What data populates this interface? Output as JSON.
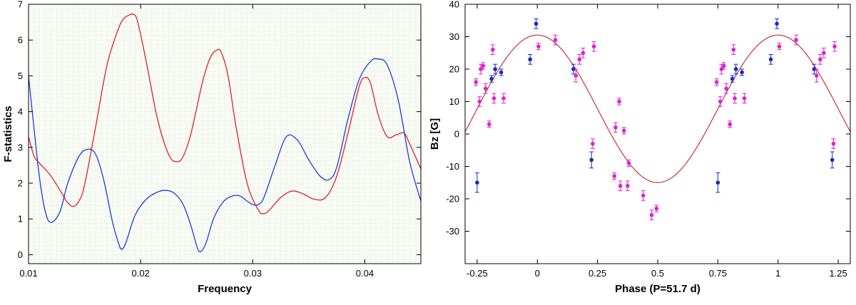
{
  "chart_data": [
    {
      "type": "line",
      "xlabel": "Frequency",
      "ylabel": "F-statistics",
      "xlim": [
        0.01,
        0.045
      ],
      "ylim": [
        -0.25,
        7
      ],
      "xticks": [
        0.01,
        0.02,
        0.03,
        0.04
      ],
      "xtick_labels": [
        "0.01",
        "0.02",
        "0.03",
        "0.04"
      ],
      "yticks": [
        0,
        1,
        2,
        3,
        4,
        5,
        6,
        7
      ],
      "ytick_labels": [
        "0",
        "1",
        "2",
        "3",
        "4",
        "5",
        "6",
        "7"
      ],
      "grid": true,
      "background": "#f7fbf4",
      "series": [
        {
          "color": "#e0202a",
          "x": [
            0.01,
            0.0105,
            0.011,
            0.012,
            0.013,
            0.0135,
            0.014,
            0.0145,
            0.015,
            0.016,
            0.017,
            0.018,
            0.0185,
            0.019,
            0.0193,
            0.0197,
            0.0205,
            0.0215,
            0.0225,
            0.0232,
            0.0238,
            0.0245,
            0.0255,
            0.0262,
            0.0268,
            0.0272,
            0.0278,
            0.0285,
            0.0295,
            0.0305,
            0.031,
            0.0315,
            0.0325,
            0.0335,
            0.0345,
            0.0355,
            0.0365,
            0.0375,
            0.0385,
            0.0395,
            0.04,
            0.0405,
            0.0412,
            0.042,
            0.0428,
            0.0435,
            0.044,
            0.045
          ],
          "y": [
            3.3,
            2.75,
            2.55,
            2.2,
            1.7,
            1.45,
            1.35,
            1.5,
            1.95,
            3.6,
            5.3,
            6.3,
            6.6,
            6.7,
            6.72,
            6.55,
            5.4,
            3.8,
            2.8,
            2.6,
            2.75,
            3.4,
            4.8,
            5.5,
            5.72,
            5.65,
            5.0,
            3.6,
            2.0,
            1.25,
            1.15,
            1.25,
            1.6,
            1.78,
            1.7,
            1.55,
            1.6,
            2.2,
            3.4,
            4.7,
            4.95,
            4.8,
            3.9,
            3.3,
            3.35,
            3.4,
            3.1,
            2.4
          ]
        },
        {
          "color": "#1e3cd8",
          "x": [
            0.01,
            0.0105,
            0.011,
            0.0115,
            0.012,
            0.0128,
            0.0135,
            0.0145,
            0.0153,
            0.016,
            0.0167,
            0.0175,
            0.018,
            0.0183,
            0.0187,
            0.0195,
            0.0205,
            0.0215,
            0.0222,
            0.023,
            0.0238,
            0.0245,
            0.025,
            0.0253,
            0.0258,
            0.0265,
            0.0273,
            0.028,
            0.0288,
            0.0295,
            0.03,
            0.0305,
            0.031,
            0.032,
            0.033,
            0.034,
            0.035,
            0.036,
            0.0368,
            0.0375,
            0.0385,
            0.0395,
            0.0405,
            0.0412,
            0.042,
            0.043,
            0.044,
            0.045
          ],
          "y": [
            5.0,
            3.5,
            2.1,
            1.2,
            0.9,
            1.2,
            2.0,
            2.75,
            2.95,
            2.8,
            2.1,
            0.9,
            0.35,
            0.15,
            0.35,
            1.1,
            1.55,
            1.75,
            1.8,
            1.72,
            1.4,
            0.8,
            0.25,
            0.08,
            0.3,
            1.0,
            1.45,
            1.62,
            1.65,
            1.5,
            1.4,
            1.4,
            1.6,
            2.5,
            3.3,
            3.2,
            2.65,
            2.2,
            2.1,
            2.45,
            3.8,
            4.9,
            5.4,
            5.47,
            5.3,
            4.3,
            2.6,
            1.5
          ]
        }
      ]
    },
    {
      "type": "scatter",
      "xlabel": "Phase (P=51.7 d)",
      "ylabel": "Bz [G]",
      "xlim": [
        -0.3,
        1.3
      ],
      "ylim": [
        -40,
        40
      ],
      "xticks": [
        -0.25,
        0,
        0.25,
        0.5,
        0.75,
        1,
        1.25
      ],
      "xtick_labels": [
        "-0.25",
        "0",
        "0.25",
        "0.5",
        "0.75",
        "1",
        "1.25"
      ],
      "yticks": [
        -30,
        -20,
        -10,
        0,
        10,
        20,
        30,
        40
      ],
      "ytick_labels": [
        "-30",
        "-20",
        "-10",
        "0",
        "10",
        "20",
        "30",
        "40"
      ],
      "grid": false,
      "fit": {
        "type": "sinusoid",
        "mean": 7.75,
        "amplitude": 22.75,
        "phase_of_max": 0.0,
        "period": 1.0,
        "color": "#c8202a"
      },
      "series": [
        {
          "color": "#1428c8",
          "points": [
            {
              "x": -0.25,
              "y": -15,
              "err": 3
            },
            {
              "x": -0.19,
              "y": 17,
              "err": 1
            },
            {
              "x": -0.175,
              "y": 20,
              "err": 1.5
            },
            {
              "x": -0.15,
              "y": 19,
              "err": 1
            },
            {
              "x": -0.03,
              "y": 23,
              "err": 1.5
            },
            {
              "x": -0.005,
              "y": 34,
              "err": 1.5
            },
            {
              "x": 0.15,
              "y": 20,
              "err": 1.5
            },
            {
              "x": 0.225,
              "y": -8,
              "err": 2.5
            },
            {
              "x": 0.75,
              "y": -15,
              "err": 3
            },
            {
              "x": 0.81,
              "y": 17,
              "err": 1
            },
            {
              "x": 0.825,
              "y": 20,
              "err": 1.5
            },
            {
              "x": 0.85,
              "y": 19,
              "err": 1
            },
            {
              "x": 0.97,
              "y": 23,
              "err": 1.5
            },
            {
              "x": 0.995,
              "y": 34,
              "err": 1.5
            },
            {
              "x": 1.15,
              "y": 20,
              "err": 1.5
            },
            {
              "x": 1.225,
              "y": -8,
              "err": 2.5
            }
          ]
        },
        {
          "color": "#e020d0",
          "points": [
            {
              "x": -0.255,
              "y": 16,
              "err": 1
            },
            {
              "x": -0.24,
              "y": 10,
              "err": 1.5
            },
            {
              "x": -0.235,
              "y": 20,
              "err": 1.5
            },
            {
              "x": -0.225,
              "y": 21,
              "err": 1
            },
            {
              "x": -0.215,
              "y": 14,
              "err": 1.5
            },
            {
              "x": -0.2,
              "y": 3,
              "err": 1
            },
            {
              "x": -0.185,
              "y": 26,
              "err": 1.5
            },
            {
              "x": -0.18,
              "y": 11,
              "err": 1.5
            },
            {
              "x": -0.14,
              "y": 11,
              "err": 1.5
            },
            {
              "x": 0.005,
              "y": 27,
              "err": 1
            },
            {
              "x": 0.075,
              "y": 29,
              "err": 1.5
            },
            {
              "x": 0.16,
              "y": 18,
              "err": 2
            },
            {
              "x": 0.175,
              "y": 23,
              "err": 1.5
            },
            {
              "x": 0.19,
              "y": 25,
              "err": 1.5
            },
            {
              "x": 0.23,
              "y": -3,
              "err": 1.5
            },
            {
              "x": 0.235,
              "y": 27,
              "err": 1.5
            },
            {
              "x": 0.32,
              "y": -13,
              "err": 1
            },
            {
              "x": 0.325,
              "y": 2,
              "err": 1.5
            },
            {
              "x": 0.34,
              "y": 10,
              "err": 1
            },
            {
              "x": 0.345,
              "y": -16,
              "err": 1.5
            },
            {
              "x": 0.36,
              "y": 1,
              "err": 1
            },
            {
              "x": 0.375,
              "y": -16,
              "err": 1.5
            },
            {
              "x": 0.38,
              "y": -9,
              "err": 1
            },
            {
              "x": 0.44,
              "y": -19,
              "err": 1.5
            },
            {
              "x": 0.475,
              "y": -25,
              "err": 1.5
            },
            {
              "x": 0.495,
              "y": -23,
              "err": 1
            },
            {
              "x": 0.745,
              "y": 16,
              "err": 1
            },
            {
              "x": 0.76,
              "y": 10,
              "err": 1.5
            },
            {
              "x": 0.765,
              "y": 20,
              "err": 1.5
            },
            {
              "x": 0.775,
              "y": 21,
              "err": 1
            },
            {
              "x": 0.785,
              "y": 14,
              "err": 1.5
            },
            {
              "x": 0.8,
              "y": 3,
              "err": 1
            },
            {
              "x": 0.815,
              "y": 26,
              "err": 1.5
            },
            {
              "x": 0.82,
              "y": 11,
              "err": 1.5
            },
            {
              "x": 0.86,
              "y": 11,
              "err": 1.5
            },
            {
              "x": 1.005,
              "y": 27,
              "err": 1
            },
            {
              "x": 1.075,
              "y": 29,
              "err": 1.5
            },
            {
              "x": 1.16,
              "y": 18,
              "err": 2
            },
            {
              "x": 1.175,
              "y": 23,
              "err": 1.5
            },
            {
              "x": 1.19,
              "y": 25,
              "err": 1.5
            },
            {
              "x": 1.23,
              "y": -3,
              "err": 1.5
            },
            {
              "x": 1.235,
              "y": 27,
              "err": 1.5
            }
          ]
        }
      ]
    }
  ]
}
